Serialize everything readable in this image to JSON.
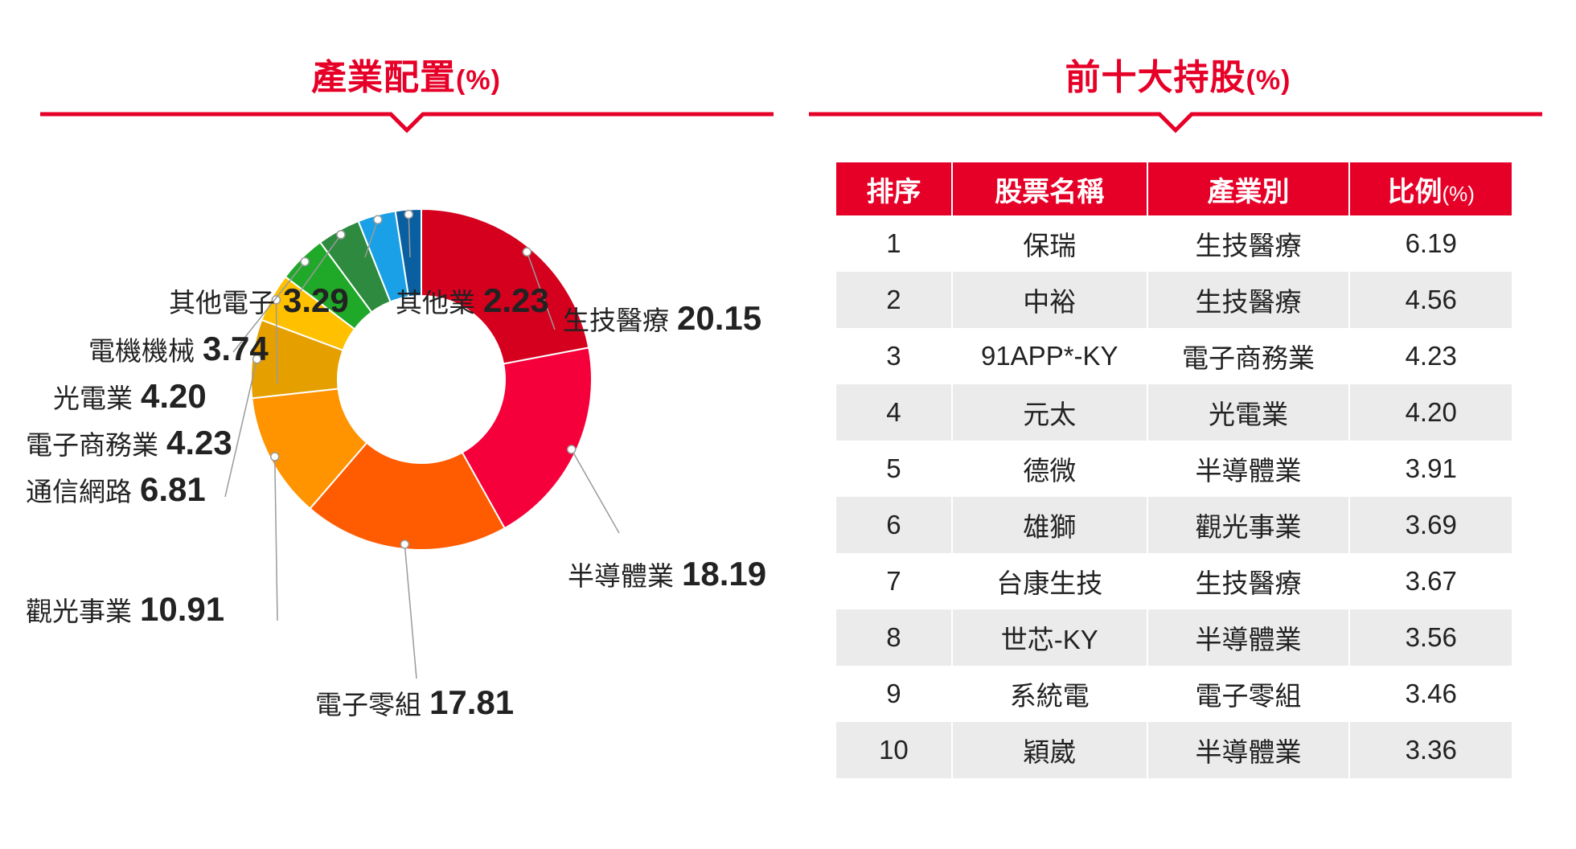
{
  "left_panel": {
    "title": "產業配置",
    "unit": "(%)"
  },
  "right_panel": {
    "title": "前十大持股",
    "unit": "(%)"
  },
  "colors": {
    "accent": "#e60028",
    "row_alt": "#ebebeb"
  },
  "chart_data": {
    "type": "pie",
    "title": "產業配置(%)",
    "slices": [
      {
        "label": "生技醫療",
        "value": 20.15,
        "color": "#d4001e"
      },
      {
        "label": "半導體業",
        "value": 18.19,
        "color": "#f5003a"
      },
      {
        "label": "電子零組",
        "value": 17.81,
        "color": "#ff5b00"
      },
      {
        "label": "觀光事業",
        "value": 10.91,
        "color": "#ff9300"
      },
      {
        "label": "通信網路",
        "value": 6.81,
        "color": "#e5a000"
      },
      {
        "label": "電子商務業",
        "value": 4.23,
        "color": "#ffc000"
      },
      {
        "label": "光電業",
        "value": 4.2,
        "color": "#20a829"
      },
      {
        "label": "電機機械",
        "value": 3.74,
        "color": "#2d8a3e"
      },
      {
        "label": "其他電子",
        "value": 3.29,
        "color": "#1aa0e6"
      },
      {
        "label": "其他業",
        "value": 2.23,
        "color": "#0a5fa0"
      }
    ]
  },
  "holdings_table": {
    "headers": [
      "排序",
      "股票名稱",
      "產業別",
      "比例"
    ],
    "ratio_unit": "(%)",
    "rows": [
      [
        "1",
        "保瑞",
        "生技醫療",
        "6.19"
      ],
      [
        "2",
        "中裕",
        "生技醫療",
        "4.56"
      ],
      [
        "3",
        "91APP*-KY",
        "電子商務業",
        "4.23"
      ],
      [
        "4",
        "元太",
        "光電業",
        "4.20"
      ],
      [
        "5",
        "德微",
        "半導體業",
        "3.91"
      ],
      [
        "6",
        "雄獅",
        "觀光事業",
        "3.69"
      ],
      [
        "7",
        "台康生技",
        "生技醫療",
        "3.67"
      ],
      [
        "8",
        "世芯-KY",
        "半導體業",
        "3.56"
      ],
      [
        "9",
        "系統電",
        "電子零組",
        "3.46"
      ],
      [
        "10",
        "穎崴",
        "半導體業",
        "3.36"
      ]
    ]
  }
}
